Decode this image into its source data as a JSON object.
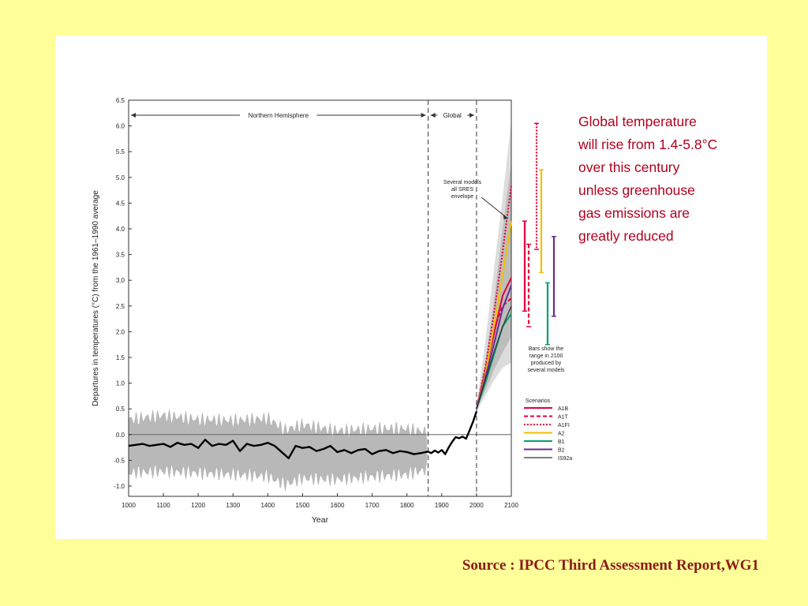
{
  "headline": {
    "lines": [
      "Global temperature",
      "will rise from 1.4-5.8°C",
      "over this century",
      "unless greenhouse",
      "gas emissions are",
      "greatly reduced"
    ]
  },
  "source": "Source : IPCC Third Assessment Report,WG1",
  "colors": {
    "background": "#ffff99",
    "headline": "#b0001e",
    "source": "#8a1a1a",
    "A1B": "#e4003a",
    "A1T": "#e4003a",
    "A1FI": "#e4003a",
    "A2": "#f0c000",
    "B1": "#00a070",
    "B2": "#6a2c91",
    "IS92a": "#333333",
    "observed": "#000000",
    "uncertainty": "#b8b8b8"
  },
  "chart_data": {
    "type": "line",
    "xlabel": "Year",
    "ylabel": "Departures in temperatures (°C) from the 1961–1990 average",
    "xlim": [
      1000,
      2100
    ],
    "ylim": [
      -1.2,
      6.5
    ],
    "xticks": [
      "1000",
      "1100",
      "1200",
      "1300",
      "1400",
      "1500",
      "1600",
      "1700",
      "1800",
      "1900",
      "2000",
      "2100"
    ],
    "yticks": [
      "6.5",
      "6.0",
      "5.5",
      "5.0",
      "4.5",
      "4.0",
      "3.5",
      "3.0",
      "2.5",
      "2.0",
      "1.5",
      "1.0",
      "0.5",
      "0.0",
      "-0.5",
      "-1.0"
    ],
    "regions": {
      "northern": {
        "label": "Northern Hemisphere",
        "from": 1000,
        "to": 1861
      },
      "global": {
        "label": "Global",
        "from": 1861,
        "to": 2000
      }
    },
    "annotation": {
      "lines": [
        "Several models",
        "all SRES",
        "envelope"
      ],
      "points_to": {
        "x": 2090,
        "y": 4.2
      }
    },
    "bars_note": [
      "Bars show the",
      "range in 2100",
      "produced by",
      "several models"
    ],
    "legend_title": "Scenarios",
    "observed": {
      "x": [
        1000,
        1020,
        1040,
        1060,
        1080,
        1100,
        1120,
        1140,
        1160,
        1180,
        1200,
        1220,
        1240,
        1260,
        1280,
        1300,
        1320,
        1340,
        1360,
        1380,
        1400,
        1420,
        1440,
        1460,
        1480,
        1500,
        1520,
        1540,
        1560,
        1580,
        1600,
        1620,
        1640,
        1660,
        1680,
        1700,
        1720,
        1740,
        1760,
        1780,
        1800,
        1820,
        1840,
        1860,
        1870,
        1880,
        1890,
        1900,
        1910,
        1920,
        1930,
        1940,
        1950,
        1960,
        1970,
        1980,
        1990,
        2000
      ],
      "y": [
        -0.22,
        -0.2,
        -0.18,
        -0.22,
        -0.2,
        -0.18,
        -0.24,
        -0.16,
        -0.2,
        -0.18,
        -0.26,
        -0.1,
        -0.22,
        -0.18,
        -0.2,
        -0.12,
        -0.32,
        -0.18,
        -0.22,
        -0.2,
        -0.16,
        -0.22,
        -0.34,
        -0.46,
        -0.22,
        -0.26,
        -0.24,
        -0.32,
        -0.28,
        -0.22,
        -0.34,
        -0.3,
        -0.36,
        -0.3,
        -0.28,
        -0.38,
        -0.32,
        -0.3,
        -0.36,
        -0.32,
        -0.34,
        -0.38,
        -0.36,
        -0.33,
        -0.36,
        -0.31,
        -0.35,
        -0.3,
        -0.38,
        -0.25,
        -0.14,
        -0.05,
        -0.07,
        -0.04,
        -0.08,
        0.08,
        0.25,
        0.45
      ]
    },
    "uncertainty_band": {
      "x": [
        1000,
        1100,
        1200,
        1300,
        1400,
        1450,
        1500,
        1600,
        1700,
        1800,
        1860
      ],
      "lower": [
        -0.75,
        -0.72,
        -0.75,
        -0.78,
        -0.82,
        -0.98,
        -0.86,
        -0.88,
        -0.82,
        -0.78,
        -0.68
      ],
      "upper": [
        0.3,
        0.38,
        0.3,
        0.28,
        0.32,
        0.1,
        0.2,
        0.08,
        0.12,
        0.12,
        0.05
      ]
    },
    "sres_envelope": {
      "x": [
        2000,
        2025,
        2050,
        2075,
        2100
      ],
      "lower": [
        0.5,
        0.85,
        1.25,
        1.6,
        1.9
      ],
      "upper": [
        0.5,
        1.4,
        2.6,
        4.0,
        5.3
      ]
    },
    "outer_envelope": {
      "x": [
        2000,
        2025,
        2050,
        2075,
        2100
      ],
      "lower": [
        0.45,
        0.75,
        1.05,
        1.3,
        1.4
      ],
      "upper": [
        0.55,
        1.8,
        3.2,
        4.6,
        6.1
      ]
    },
    "series": [
      {
        "name": "A1B",
        "style": "solid",
        "x": [
          2000,
          2025,
          2050,
          2075,
          2100
        ],
        "values": [
          0.5,
          1.2,
          1.95,
          2.7,
          3.05
        ]
      },
      {
        "name": "A1T",
        "style": "dashed",
        "x": [
          2000,
          2025,
          2050,
          2075,
          2100
        ],
        "values": [
          0.5,
          1.25,
          2.05,
          2.5,
          2.65
        ]
      },
      {
        "name": "A1FI",
        "style": "dotted",
        "x": [
          2000,
          2025,
          2050,
          2075,
          2100
        ],
        "values": [
          0.5,
          1.3,
          2.35,
          3.55,
          4.85
        ]
      },
      {
        "name": "A2",
        "style": "solid",
        "x": [
          2000,
          2025,
          2050,
          2075,
          2100
        ],
        "values": [
          0.5,
          1.15,
          2.1,
          3.1,
          4.15
        ]
      },
      {
        "name": "B1",
        "style": "solid",
        "x": [
          2000,
          2025,
          2050,
          2075,
          2100
        ],
        "values": [
          0.5,
          1.0,
          1.55,
          2.1,
          2.35
        ]
      },
      {
        "name": "B2",
        "style": "solid",
        "x": [
          2000,
          2025,
          2050,
          2075,
          2100
        ],
        "values": [
          0.5,
          1.1,
          1.75,
          2.45,
          2.9
        ]
      },
      {
        "name": "IS92a",
        "style": "solid",
        "x": [
          2000,
          2025,
          2050,
          2075,
          2100
        ],
        "values": [
          0.5,
          1.05,
          1.6,
          2.1,
          2.5
        ]
      }
    ],
    "range_bars_2100": [
      {
        "name": "A1B",
        "style": "solid",
        "min": 2.4,
        "max": 4.15
      },
      {
        "name": "A1T",
        "style": "dashed",
        "min": 2.1,
        "max": 3.7
      },
      {
        "name": "A1FI",
        "style": "dotted",
        "min": 3.6,
        "max": 6.05
      },
      {
        "name": "A2",
        "style": "solid",
        "min": 3.15,
        "max": 5.15
      },
      {
        "name": "B1",
        "style": "solid",
        "min": 1.75,
        "max": 2.95
      },
      {
        "name": "B2",
        "style": "solid",
        "min": 2.3,
        "max": 3.85
      }
    ],
    "legend": [
      "A1B",
      "A1T",
      "A1FI",
      "A2",
      "B1",
      "B2",
      "IS92a"
    ]
  }
}
